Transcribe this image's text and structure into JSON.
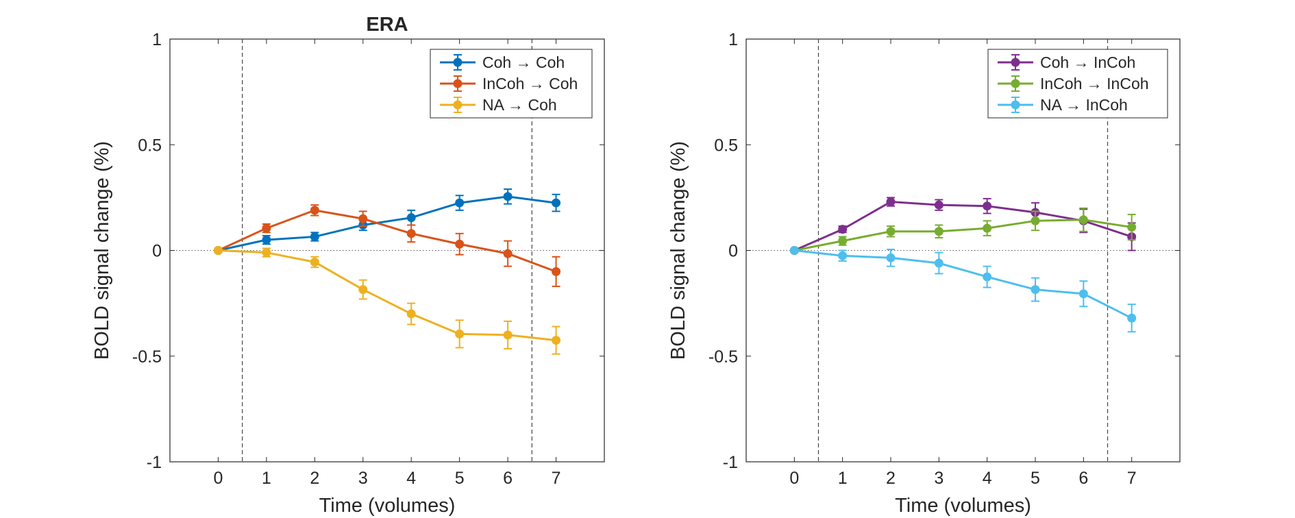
{
  "figure": {
    "arrow": "→"
  },
  "chart_data": [
    {
      "type": "line",
      "title": "ERA",
      "xlabel": "Time (volumes)",
      "ylabel": "BOLD signal change (%)",
      "xlim": [
        -1,
        8
      ],
      "ylim": [
        -1,
        1
      ],
      "x": [
        0,
        1,
        2,
        3,
        4,
        5,
        6,
        7
      ],
      "xticks": [
        "0",
        "1",
        "2",
        "3",
        "4",
        "5",
        "6",
        "7"
      ],
      "yticks": [
        -1,
        -0.5,
        0,
        0.5,
        1
      ],
      "ytick_labels": [
        "-1",
        "-0.5",
        "0",
        "0.5",
        "1"
      ],
      "vlines_dashed": [
        0.5,
        6.5
      ],
      "hline_dotted": 0,
      "legend_position": "top-right",
      "error_bars": true,
      "series": [
        {
          "name": "Coh → Coh",
          "color": "#0072BD",
          "values": [
            0,
            0.05,
            0.065,
            0.12,
            0.155,
            0.225,
            0.255,
            0.225
          ],
          "errors": [
            0,
            0.02,
            0.02,
            0.025,
            0.035,
            0.035,
            0.035,
            0.04
          ]
        },
        {
          "name": "InCoh → Coh",
          "color": "#D95319",
          "values": [
            0,
            0.105,
            0.19,
            0.15,
            0.08,
            0.03,
            -0.015,
            -0.1
          ],
          "errors": [
            0,
            0.02,
            0.025,
            0.035,
            0.04,
            0.05,
            0.06,
            0.07
          ]
        },
        {
          "name": "NA → Coh",
          "color": "#EDB120",
          "values": [
            0,
            -0.01,
            -0.055,
            -0.185,
            -0.3,
            -0.395,
            -0.4,
            -0.425
          ],
          "errors": [
            0,
            0.02,
            0.025,
            0.045,
            0.05,
            0.065,
            0.065,
            0.065
          ]
        }
      ]
    },
    {
      "type": "line",
      "title": "",
      "xlabel": "Time (volumes)",
      "ylabel": "BOLD signal change (%)",
      "xlim": [
        -1,
        8
      ],
      "ylim": [
        -1,
        1
      ],
      "x": [
        0,
        1,
        2,
        3,
        4,
        5,
        6,
        7
      ],
      "xticks": [
        "0",
        "1",
        "2",
        "3",
        "4",
        "5",
        "6",
        "7"
      ],
      "yticks": [
        -1,
        -0.5,
        0,
        0.5,
        1
      ],
      "ytick_labels": [
        "-1",
        "-0.5",
        "0",
        "0.5",
        "1"
      ],
      "vlines_dashed": [
        0.5,
        6.5
      ],
      "hline_dotted": 0,
      "legend_position": "top-right",
      "error_bars": true,
      "series": [
        {
          "name": "Coh → InCoh",
          "color": "#7E2F8E",
          "values": [
            0,
            0.1,
            0.23,
            0.215,
            0.21,
            0.18,
            0.14,
            0.065
          ],
          "errors": [
            0,
            0.015,
            0.02,
            0.025,
            0.035,
            0.045,
            0.055,
            0.065
          ]
        },
        {
          "name": "InCoh → InCoh",
          "color": "#77AC30",
          "values": [
            0,
            0.045,
            0.09,
            0.09,
            0.105,
            0.14,
            0.145,
            0.11
          ],
          "errors": [
            0,
            0.02,
            0.025,
            0.03,
            0.035,
            0.045,
            0.055,
            0.06
          ]
        },
        {
          "name": "NA → InCoh",
          "color": "#4DBEEE",
          "values": [
            0,
            -0.025,
            -0.035,
            -0.06,
            -0.125,
            -0.185,
            -0.205,
            -0.32
          ],
          "errors": [
            0,
            0.025,
            0.04,
            0.05,
            0.05,
            0.055,
            0.06,
            0.065
          ]
        }
      ]
    }
  ]
}
